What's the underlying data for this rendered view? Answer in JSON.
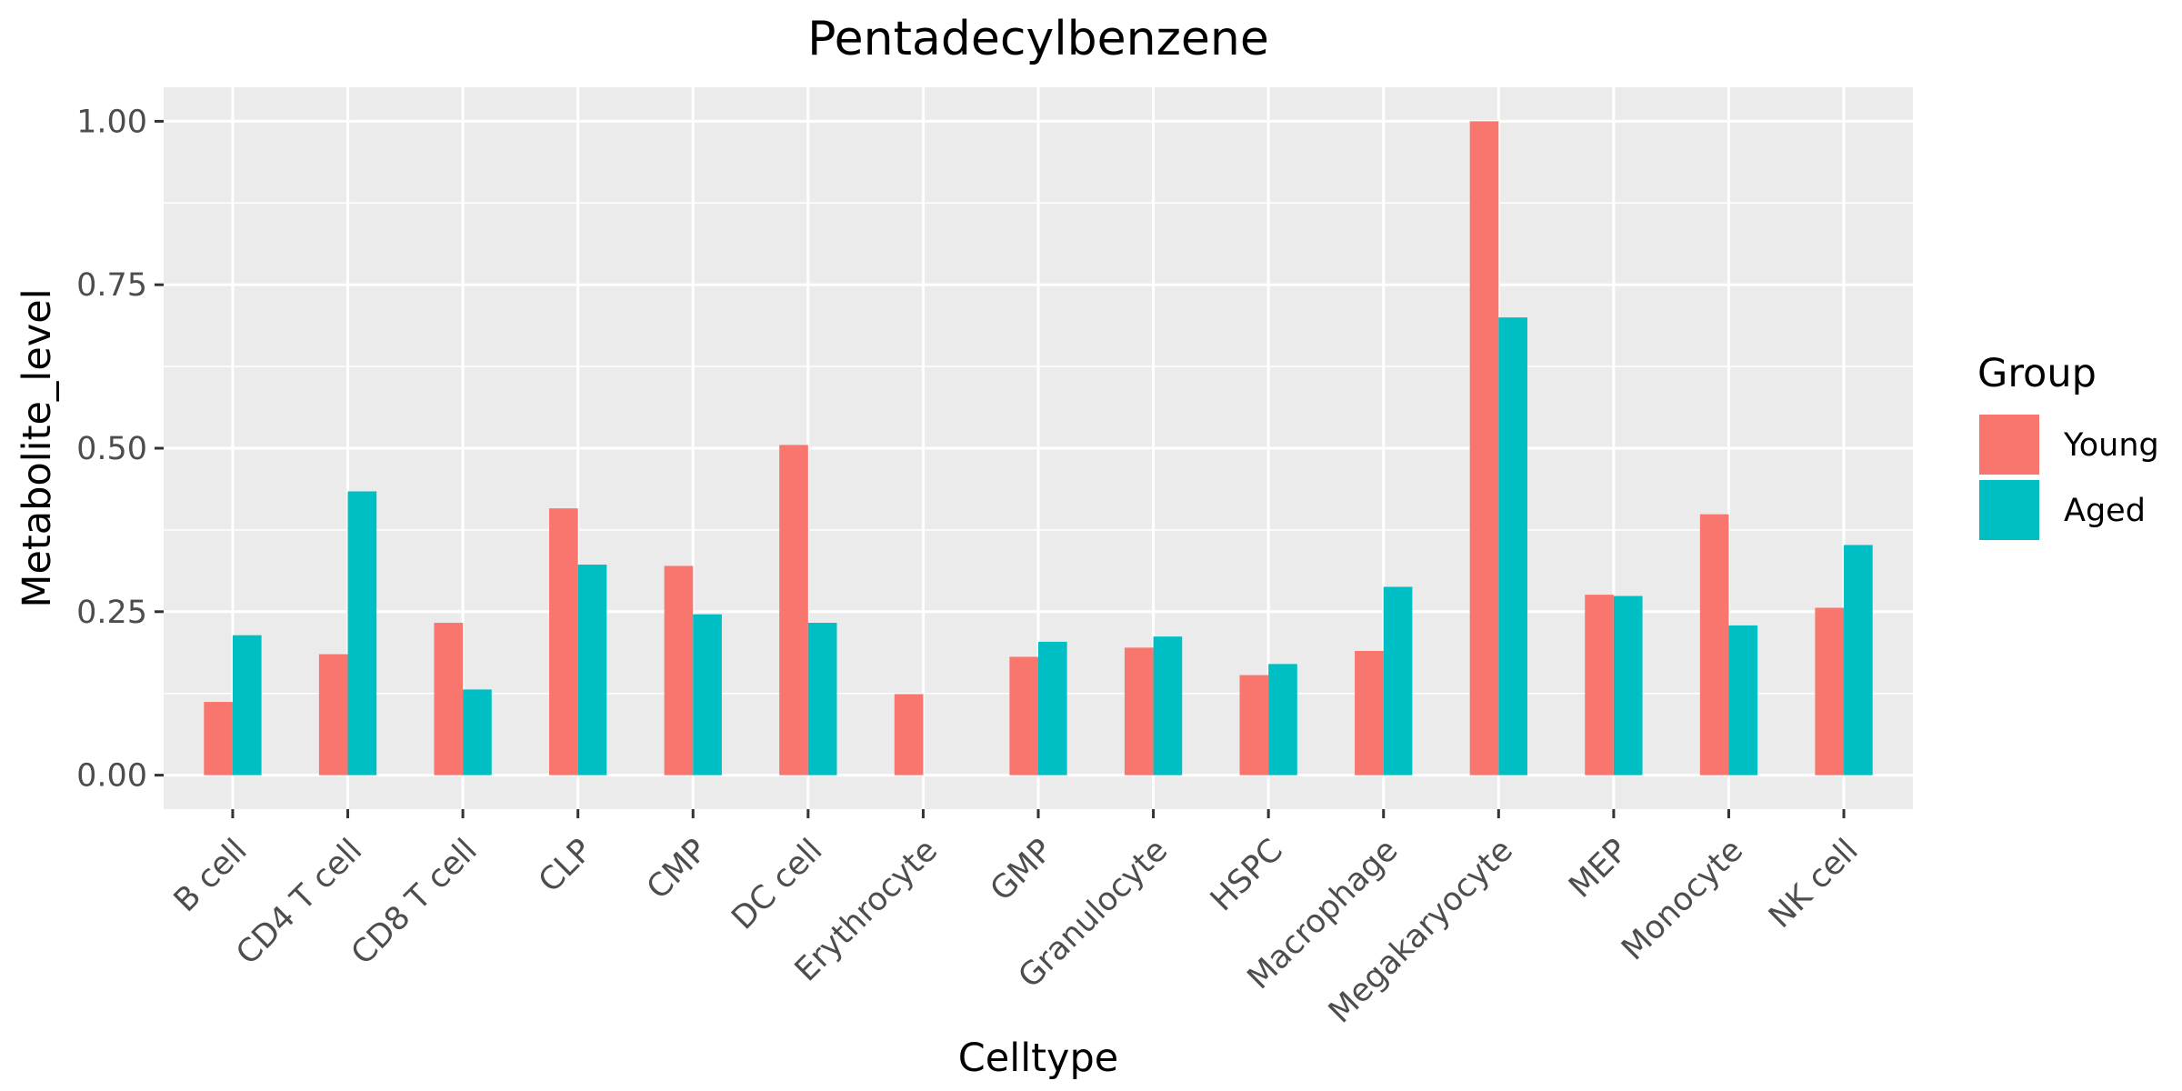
{
  "chart_data": {
    "type": "bar",
    "title": "Pentadecylbenzene",
    "xlabel": "Celltype",
    "ylabel": "Metabolite_level",
    "categories": [
      "B cell",
      "CD4 T cell",
      "CD8 T cell",
      "CLP",
      "CMP",
      "DC cell",
      "Erythrocyte",
      "GMP",
      "Granulocyte",
      "HSPC",
      "Macrophage",
      "Megakaryocyte",
      "MEP",
      "Monocyte",
      "NK cell"
    ],
    "series": [
      {
        "name": "Young",
        "color": "#F8766D",
        "values": [
          0.112,
          0.185,
          0.233,
          0.408,
          0.32,
          0.505,
          0.124,
          0.181,
          0.195,
          0.153,
          0.19,
          1.0,
          0.276,
          0.399,
          0.256
        ]
      },
      {
        "name": "Aged",
        "color": "#00BFC4",
        "values": [
          0.214,
          0.434,
          0.131,
          0.322,
          0.246,
          0.233,
          null,
          0.204,
          0.212,
          0.17,
          0.288,
          0.7,
          0.274,
          0.229,
          0.352
        ]
      }
    ],
    "ylim": [
      -0.052,
      1.052
    ],
    "yticks": [
      0.0,
      0.25,
      0.5,
      0.75,
      1.0
    ],
    "ytick_labels": [
      "0.00",
      "0.25",
      "0.50",
      "0.75",
      "1.00"
    ],
    "grid": true,
    "legend": {
      "title": "Group",
      "position": "right"
    }
  }
}
